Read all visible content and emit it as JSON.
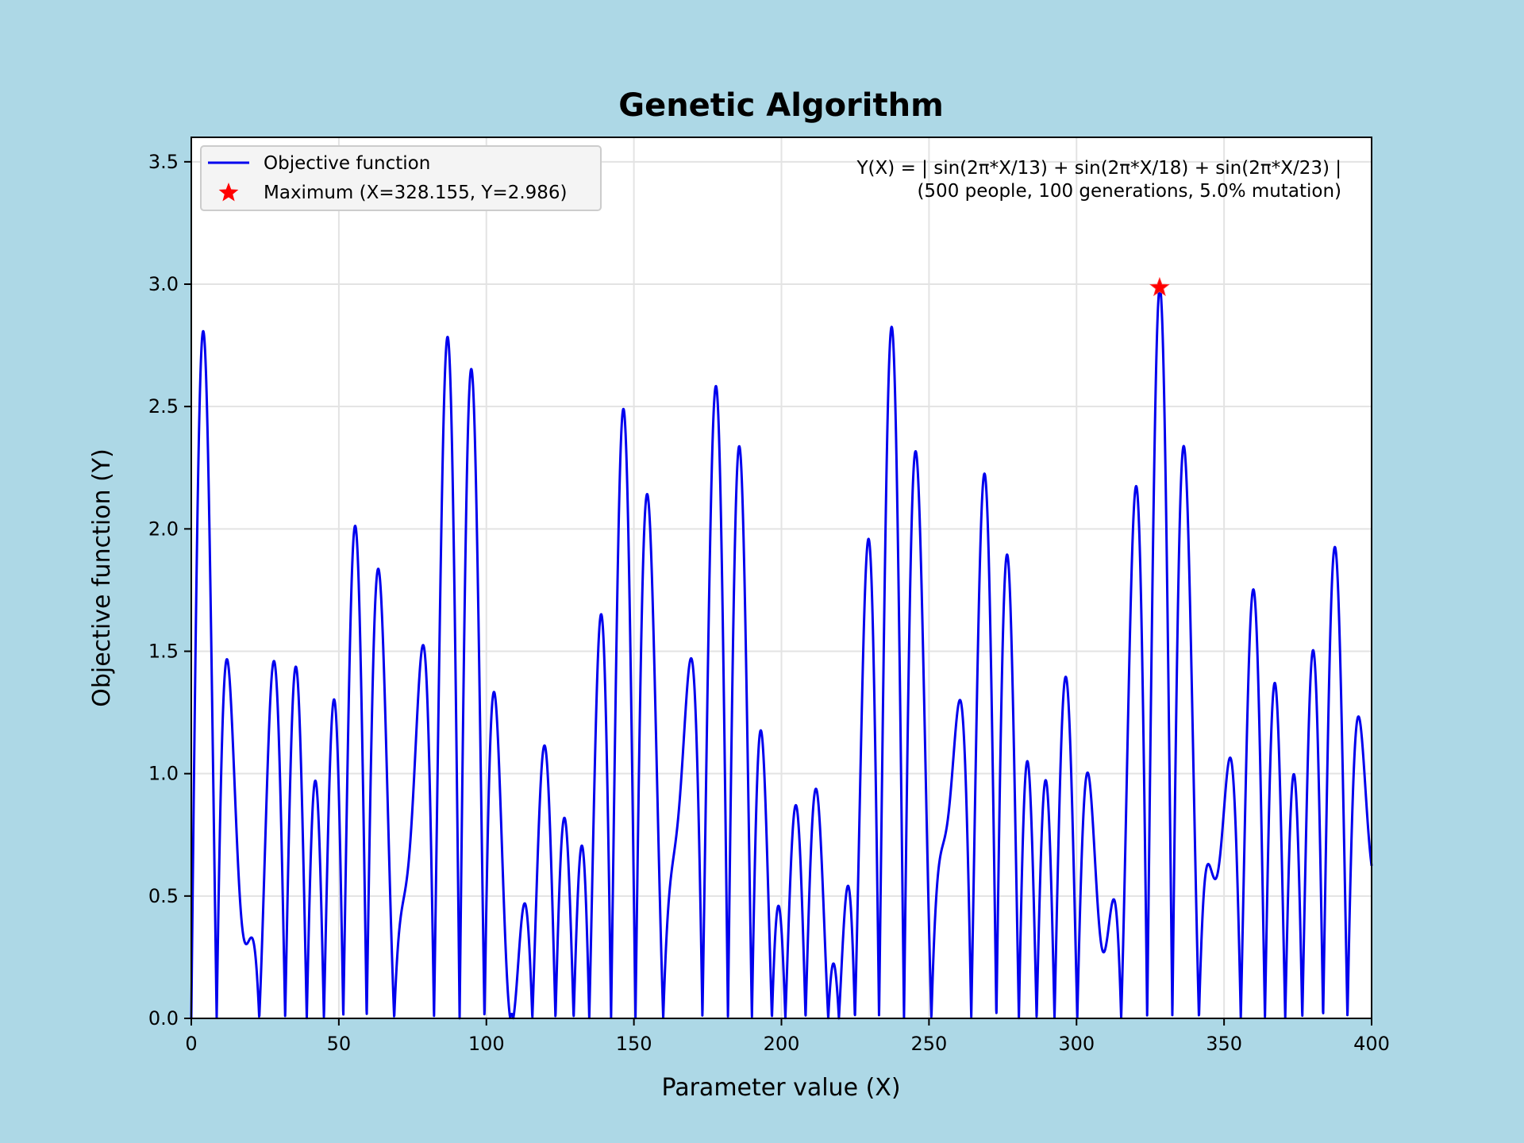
{
  "chart_data": {
    "type": "line",
    "title": "Genetic Algorithm",
    "xlabel": "Parameter value (X)",
    "ylabel": "Objective function (Y)",
    "xlim": [
      0,
      400
    ],
    "ylim": [
      0,
      3.6
    ],
    "xticks": [
      0,
      50,
      100,
      150,
      200,
      250,
      300,
      350,
      400
    ],
    "xtick_labels": [
      "0",
      "50",
      "100",
      "150",
      "200",
      "250",
      "300",
      "350",
      "400"
    ],
    "yticks": [
      0,
      0.5,
      1,
      1.5,
      2,
      2.5,
      3,
      3.5
    ],
    "ytick_labels": [
      "0.0",
      "0.5",
      "1.0",
      "1.5",
      "2.0",
      "2.5",
      "3.0",
      "3.5"
    ],
    "grid": true,
    "legend_position": "top-left",
    "function": "Y(X) = | sin(2π*X/13) + sin(2π*X/18) + sin(2π*X/23) |",
    "periods": [
      13,
      18,
      23
    ],
    "series": [
      {
        "name": "Objective function",
        "kind": "line",
        "color": "#0000ee"
      },
      {
        "name": "Maximum (X=328.155, Y=2.986)",
        "kind": "marker",
        "marker": "star",
        "color": "#ff0000",
        "x": 328.155,
        "y": 2.986
      }
    ],
    "annotation_lines": [
      "Y(X) = | sin(2π*X/13) + sin(2π*X/18) + sin(2π*X/23) |",
      "(500 people, 100 generations, 5.0% mutation)"
    ]
  }
}
